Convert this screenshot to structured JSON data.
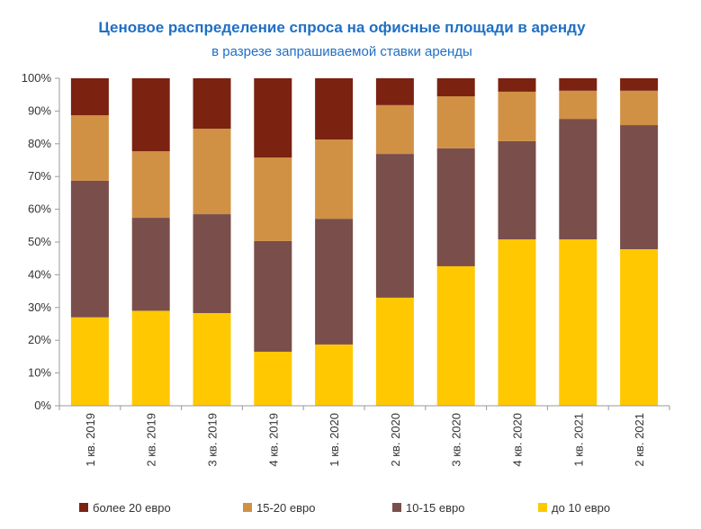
{
  "chart_data": {
    "type": "bar",
    "stacked": true,
    "title": "Ценовое распределение спроса на офисные площади в аренду",
    "subtitle": "в разрезе запрашиваемой ставки аренды",
    "xlabel": "",
    "ylabel": "",
    "ylim": [
      0,
      100
    ],
    "yticks": [
      "0%",
      "10%",
      "20%",
      "30%",
      "40%",
      "50%",
      "60%",
      "70%",
      "80%",
      "90%",
      "100%"
    ],
    "categories": [
      "1 кв. 2019",
      "2 кв. 2019",
      "3 кв. 2019",
      "4 кв. 2019",
      "1 кв. 2020",
      "2 кв. 2020",
      "3 кв. 2020",
      "4 кв. 2020",
      "1 кв. 2021",
      "2 кв. 2021"
    ],
    "series": [
      {
        "name": "до 10 евро",
        "color": "#ffc800",
        "values": [
          27,
          29,
          28.3,
          16.5,
          18.7,
          33,
          42.6,
          50.8,
          50.8,
          47.8
        ]
      },
      {
        "name": "10-15 евро",
        "color": "#7a4e4a",
        "values": [
          41.7,
          28.4,
          30.2,
          33.8,
          38.4,
          43.9,
          36,
          30,
          36.8,
          37.9
        ]
      },
      {
        "name": "15-20 евро",
        "color": "#d09145",
        "values": [
          20,
          20.3,
          26.1,
          25.5,
          24.2,
          14.9,
          15.9,
          15.1,
          8.6,
          10.5
        ]
      },
      {
        "name": "более 20 евро",
        "color": "#7b2210",
        "values": [
          11.3,
          22.3,
          15.4,
          24.2,
          18.7,
          8.2,
          5.5,
          4.1,
          3.8,
          3.8
        ]
      }
    ],
    "legend_order": [
      3,
      2,
      1,
      0
    ],
    "legend_position": "bottom",
    "grid": false
  }
}
